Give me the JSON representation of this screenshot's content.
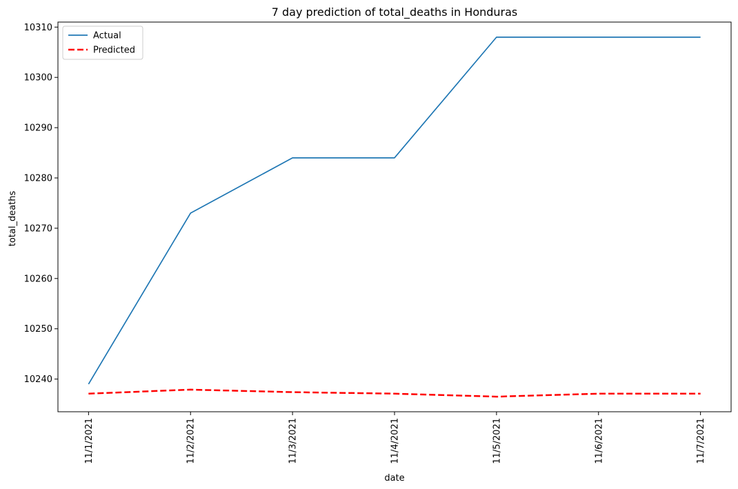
{
  "chart_data": {
    "type": "line",
    "title": "7 day prediction of total_deaths in Honduras",
    "xlabel": "date",
    "ylabel": "total_deaths",
    "x": [
      "11/1/2021",
      "11/2/2021",
      "11/3/2021",
      "11/4/2021",
      "11/5/2021",
      "11/6/2021",
      "11/7/2021"
    ],
    "yticks": [
      10240,
      10250,
      10260,
      10270,
      10280,
      10290,
      10300,
      10310
    ],
    "ylim": [
      10233.5,
      10311
    ],
    "grid": false,
    "legend_position": "top-left",
    "series": [
      {
        "name": "Actual",
        "color": "#1f77b4",
        "style": "solid",
        "values": [
          10239,
          10273,
          10284,
          10284,
          10308,
          10308,
          10308
        ]
      },
      {
        "name": "Predicted",
        "color": "#ff0000",
        "style": "dashed",
        "values": [
          10237.1,
          10237.9,
          10237.4,
          10237.1,
          10236.5,
          10237.1,
          10237.1
        ]
      }
    ]
  }
}
